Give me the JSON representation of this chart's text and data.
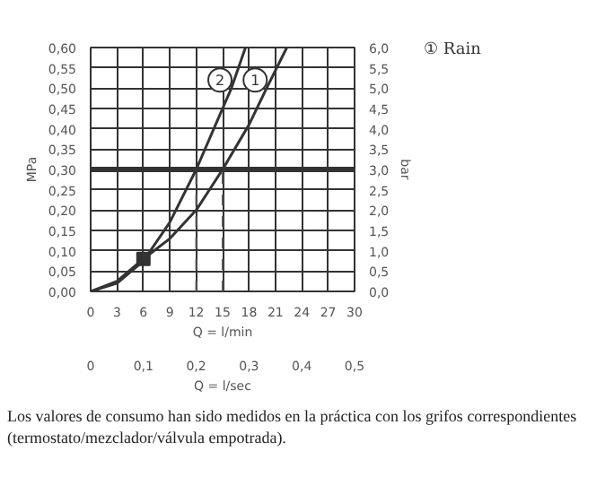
{
  "chart_data": {
    "type": "line",
    "ylabel": "MPa",
    "y2label": "bar",
    "xlabel": "Q = l/min",
    "x2label": "Q = l/sec",
    "xlim": [
      0,
      30
    ],
    "xticks": [
      0,
      3,
      6,
      9,
      12,
      15,
      18,
      21,
      24,
      27,
      30
    ],
    "x2lim": [
      0,
      0.5
    ],
    "x2ticks": [
      0,
      {
        "value": 0.1,
        "label": "0,1"
      },
      {
        "value": 0.2,
        "label": "0,2"
      },
      {
        "value": 0.3,
        "label": "0,3"
      },
      {
        "value": 0.4,
        "label": "0,4"
      },
      {
        "value": 0.5,
        "label": "0,5"
      }
    ],
    "ylim": [
      0,
      0.6
    ],
    "yticks": [
      {
        "value": 0,
        "label": "0,00"
      },
      {
        "value": 0.05,
        "label": "0,05"
      },
      {
        "value": 0.1,
        "label": "0,10"
      },
      {
        "value": 0.15,
        "label": "0,15"
      },
      {
        "value": 0.2,
        "label": "0,20"
      },
      {
        "value": 0.25,
        "label": "0,25"
      },
      {
        "value": 0.3,
        "label": "0,30"
      },
      {
        "value": 0.35,
        "label": "0,35"
      },
      {
        "value": 0.4,
        "label": "0,40"
      },
      {
        "value": 0.45,
        "label": "0,45"
      },
      {
        "value": 0.5,
        "label": "0,50"
      },
      {
        "value": 0.55,
        "label": "0,55"
      },
      {
        "value": 0.6,
        "label": "0,60"
      }
    ],
    "y2lim": [
      0,
      6
    ],
    "y2ticks": [
      {
        "value": 0,
        "label": "0,0"
      },
      {
        "value": 0.5,
        "label": "0,5"
      },
      {
        "value": 1,
        "label": "1,0"
      },
      {
        "value": 1.5,
        "label": "1,5"
      },
      {
        "value": 2,
        "label": "2,0"
      },
      {
        "value": 2.5,
        "label": "2,5"
      },
      {
        "value": 3,
        "label": "3,0"
      },
      {
        "value": 3.5,
        "label": "3,5"
      },
      {
        "value": 4,
        "label": "4,0"
      },
      {
        "value": 4.5,
        "label": "4,5"
      },
      {
        "value": 5,
        "label": "5,0"
      },
      {
        "value": 5.5,
        "label": "5,5"
      },
      {
        "value": 6,
        "label": "6,0"
      }
    ],
    "grid": true,
    "legend": "top right",
    "marker": "none",
    "line_style": "solid",
    "series": [
      {
        "name": "① Rain",
        "color": "#333333",
        "x": [
          0,
          3,
          6,
          9,
          12,
          15,
          18,
          20,
          22.3
        ],
        "values": [
          0,
          0.025,
          0.08,
          0.13,
          0.2,
          0.3,
          0.41,
          0.5,
          0.6
        ]
      },
      {
        "color": "#333333",
        "x": [
          0,
          3,
          6,
          9,
          12,
          14,
          16,
          17.6
        ],
        "values": [
          0,
          0.02,
          0.075,
          0.17,
          0.3,
          0.4,
          0.5,
          0.6
        ]
      },
      {
        "type": "scatter",
        "marker": "square",
        "color": "#333333",
        "x": [
          6
        ],
        "values": [
          0.08
        ]
      }
    ],
    "ref_lines": [
      {
        "axis": "y",
        "value": 0.3,
        "color": "#333333"
      },
      {
        "axis": "x",
        "value": 12,
        "line_style": "dashed",
        "color": "#555555"
      },
      {
        "axis": "x",
        "value": 15,
        "line_style": "dashed",
        "color": "#555555"
      }
    ],
    "annotations": [
      {
        "text": "1",
        "x": 18.7,
        "y": 0.52
      },
      {
        "text": "2",
        "x": 14.7,
        "y": 0.52
      },
      "Los valores de consumo han sido medidos en la práctica con los grifos correspondientes (termostato/mezclador/válvula empotrada)."
    ]
  }
}
